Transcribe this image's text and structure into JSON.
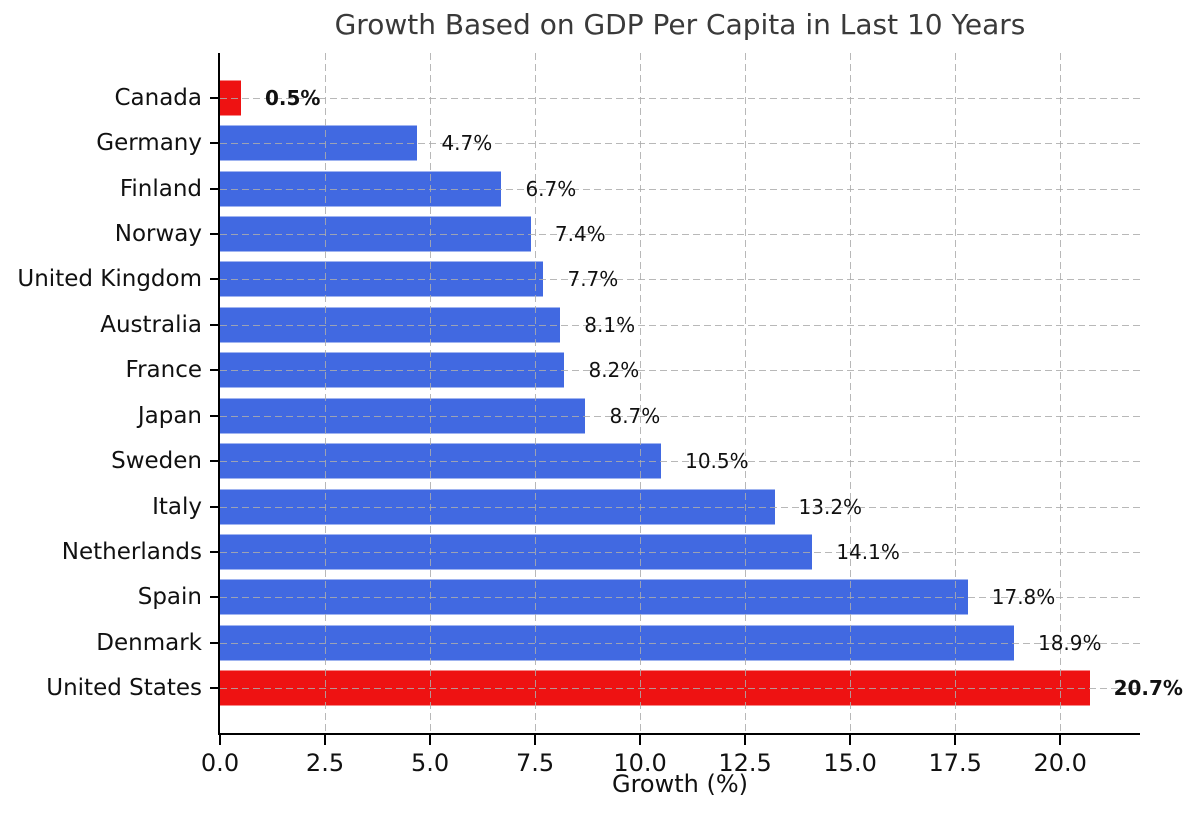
{
  "chart_data": {
    "type": "bar",
    "orientation": "horizontal",
    "title": "Growth Based on GDP Per Capita in Last 10 Years",
    "xlabel": "Growth (%)",
    "ylabel": "",
    "categories": [
      "Canada",
      "Germany",
      "Finland",
      "Norway",
      "United Kingdom",
      "Australia",
      "France",
      "Japan",
      "Sweden",
      "Italy",
      "Netherlands",
      "Spain",
      "Denmark",
      "United States"
    ],
    "values": [
      0.5,
      4.7,
      6.7,
      7.4,
      7.7,
      8.1,
      8.2,
      8.7,
      10.5,
      13.2,
      14.1,
      17.8,
      18.9,
      20.7
    ],
    "value_labels": [
      "0.5%",
      "4.7%",
      "6.7%",
      "7.4%",
      "7.7%",
      "8.1%",
      "8.2%",
      "8.7%",
      "10.5%",
      "13.2%",
      "14.1%",
      "17.8%",
      "18.9%",
      "20.7%"
    ],
    "bar_colors": [
      "#ee1212",
      "#4169e1",
      "#4169e1",
      "#4169e1",
      "#4169e1",
      "#4169e1",
      "#4169e1",
      "#4169e1",
      "#4169e1",
      "#4169e1",
      "#4169e1",
      "#4169e1",
      "#4169e1",
      "#ee1212"
    ],
    "highlighted_categories": [
      "Canada",
      "United States"
    ],
    "bar_color_default": "#4169e1",
    "bar_color_highlight": "#ee1212",
    "xticks": [
      "0.0",
      "2.5",
      "5.0",
      "7.5",
      "10.0",
      "12.5",
      "15.0",
      "17.5",
      "20.0"
    ],
    "xtick_values": [
      0,
      2.5,
      5,
      7.5,
      10,
      12.5,
      15,
      17.5,
      20
    ],
    "xlim": [
      0,
      21.9
    ],
    "grid": "dashed-both-axes",
    "grid_color": "#cccccc",
    "background_color": "#ffffff",
    "title_color": "#3a3a3a",
    "axis_color": "#000000"
  }
}
